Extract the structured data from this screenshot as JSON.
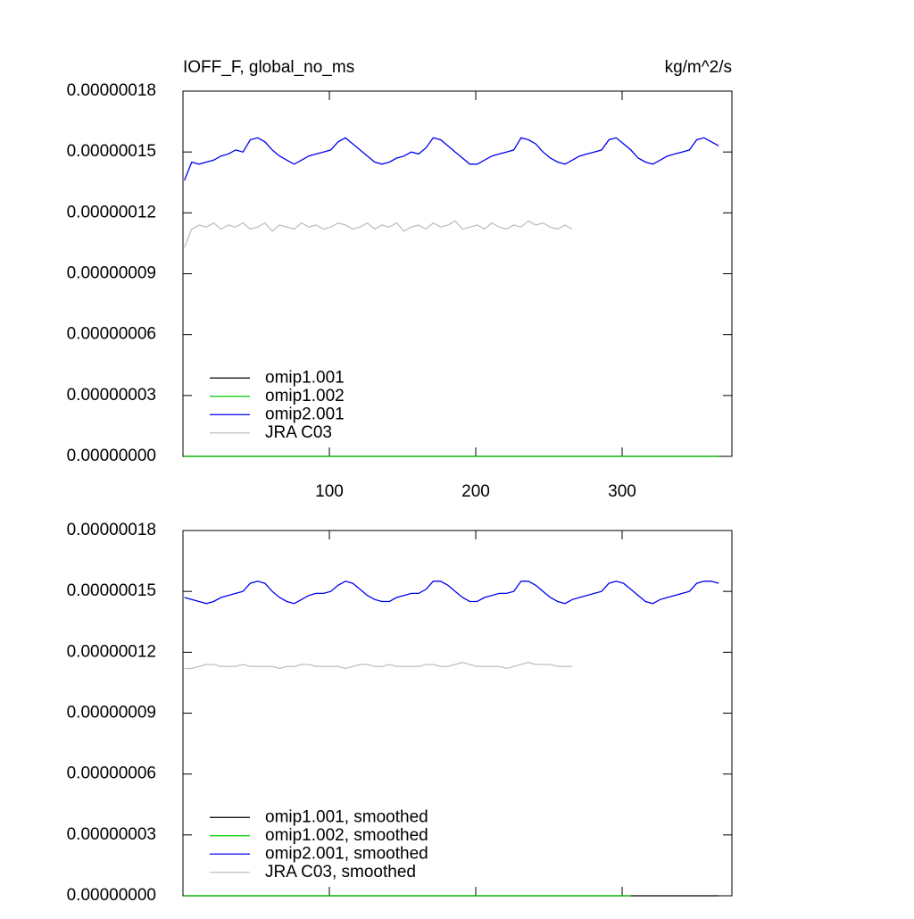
{
  "chart_data": [
    {
      "type": "line",
      "title": "IOFF_F, global_no_ms",
      "units": "kg/m^2/s",
      "x": [
        1,
        6,
        11,
        16,
        21,
        26,
        31,
        36,
        41,
        46,
        51,
        56,
        61,
        66,
        71,
        76,
        81,
        86,
        91,
        96,
        101,
        106,
        111,
        116,
        121,
        126,
        131,
        136,
        141,
        146,
        151,
        156,
        161,
        166,
        171,
        176,
        181,
        186,
        191,
        196,
        201,
        206,
        211,
        216,
        221,
        226,
        231,
        236,
        241,
        246,
        251,
        256,
        261,
        266,
        271,
        276,
        281,
        286,
        291,
        296,
        301,
        306,
        311,
        316,
        321,
        326,
        331,
        336,
        341,
        346,
        351,
        356,
        361,
        366
      ],
      "xlim": [
        0,
        375
      ],
      "xticks": [
        100,
        200,
        300
      ],
      "show_xtick_labels": true,
      "ylim": [
        0,
        1.8e-07
      ],
      "yticks": [
        {
          "value": 0,
          "label": "0.00000000"
        },
        {
          "value": 3e-08,
          "label": "0.00000003"
        },
        {
          "value": 6e-08,
          "label": "0.00000006"
        },
        {
          "value": 9e-08,
          "label": "0.00000009"
        },
        {
          "value": 1.2e-07,
          "label": "0.00000012"
        },
        {
          "value": 1.5e-07,
          "label": "0.00000015"
        },
        {
          "value": 1.8e-07,
          "label": "0.00000018"
        }
      ],
      "legend": "lower left",
      "series": [
        {
          "name": "omip1.001",
          "color": "#000000",
          "values": [
            0,
            0,
            0,
            0,
            0,
            0,
            0,
            0,
            0,
            0,
            0,
            0,
            0,
            0,
            0,
            0,
            0,
            0,
            0,
            0,
            0,
            0,
            0,
            0,
            0,
            0,
            0,
            0,
            0,
            0,
            0,
            0,
            0,
            0,
            0,
            0,
            0,
            0,
            0,
            0,
            0,
            0,
            0,
            0,
            0,
            0,
            0,
            0,
            0,
            0,
            0,
            0,
            0,
            0,
            0,
            0,
            0,
            0,
            0,
            0,
            0,
            0,
            0,
            0,
            0,
            0,
            0,
            0,
            0,
            0,
            0,
            0,
            0,
            0
          ]
        },
        {
          "name": "omip1.002",
          "color": "#00cc00",
          "values": [
            0,
            0,
            0,
            0,
            0,
            0,
            0,
            0,
            0,
            0,
            0,
            0,
            0,
            0,
            0,
            0,
            0,
            0,
            0,
            0,
            0,
            0,
            0,
            0,
            0,
            0,
            0,
            0,
            0,
            0,
            0,
            0,
            0,
            0,
            0,
            0,
            0,
            0,
            0,
            0,
            0,
            0,
            0,
            0,
            0,
            0,
            0,
            0,
            0,
            0,
            0,
            0,
            0,
            0,
            0,
            0,
            0,
            0,
            0,
            0,
            0,
            0,
            0,
            0,
            0,
            0,
            0,
            0,
            0,
            0,
            0,
            0,
            0,
            0
          ]
        },
        {
          "name": "omip2.001",
          "color": "#0000ee",
          "values": [
            1.36e-07,
            1.45e-07,
            1.44e-07,
            1.45e-07,
            1.46e-07,
            1.48e-07,
            1.49e-07,
            1.51e-07,
            1.5e-07,
            1.56e-07,
            1.57e-07,
            1.55e-07,
            1.51e-07,
            1.48e-07,
            1.46e-07,
            1.44e-07,
            1.46e-07,
            1.48e-07,
            1.49e-07,
            1.5e-07,
            1.51e-07,
            1.55e-07,
            1.57e-07,
            1.54e-07,
            1.51e-07,
            1.48e-07,
            1.45e-07,
            1.44e-07,
            1.45e-07,
            1.47e-07,
            1.48e-07,
            1.5e-07,
            1.49e-07,
            1.52e-07,
            1.57e-07,
            1.56e-07,
            1.53e-07,
            1.5e-07,
            1.47e-07,
            1.44e-07,
            1.44e-07,
            1.46e-07,
            1.48e-07,
            1.49e-07,
            1.5e-07,
            1.51e-07,
            1.57e-07,
            1.56e-07,
            1.54e-07,
            1.5e-07,
            1.47e-07,
            1.45e-07,
            1.44e-07,
            1.46e-07,
            1.48e-07,
            1.49e-07,
            1.5e-07,
            1.51e-07,
            1.56e-07,
            1.57e-07,
            1.54e-07,
            1.51e-07,
            1.47e-07,
            1.45e-07,
            1.44e-07,
            1.46e-07,
            1.48e-07,
            1.49e-07,
            1.5e-07,
            1.51e-07,
            1.56e-07,
            1.57e-07,
            1.55e-07,
            1.53e-07
          ]
        },
        {
          "name": "JRA C03",
          "color": "#c0c0c0",
          "values": [
            1.03e-07,
            1.12e-07,
            1.14e-07,
            1.13e-07,
            1.15e-07,
            1.12e-07,
            1.14e-07,
            1.13e-07,
            1.15e-07,
            1.12e-07,
            1.13e-07,
            1.15e-07,
            1.11e-07,
            1.14e-07,
            1.13e-07,
            1.12e-07,
            1.15e-07,
            1.13e-07,
            1.14e-07,
            1.12e-07,
            1.13e-07,
            1.15e-07,
            1.14e-07,
            1.12e-07,
            1.13e-07,
            1.15e-07,
            1.12e-07,
            1.14e-07,
            1.13e-07,
            1.15e-07,
            1.11e-07,
            1.13e-07,
            1.14e-07,
            1.12e-07,
            1.15e-07,
            1.13e-07,
            1.14e-07,
            1.16e-07,
            1.12e-07,
            1.13e-07,
            1.14e-07,
            1.12e-07,
            1.15e-07,
            1.13e-07,
            1.12e-07,
            1.14e-07,
            1.13e-07,
            1.16e-07,
            1.14e-07,
            1.15e-07,
            1.13e-07,
            1.12e-07,
            1.14e-07,
            1.12e-07,
            null,
            null,
            null,
            null,
            null,
            null,
            null,
            null,
            null,
            null,
            null,
            null,
            null,
            null,
            null,
            null,
            null,
            null,
            null,
            null
          ]
        }
      ]
    },
    {
      "type": "line",
      "x": [
        1,
        6,
        11,
        16,
        21,
        26,
        31,
        36,
        41,
        46,
        51,
        56,
        61,
        66,
        71,
        76,
        81,
        86,
        91,
        96,
        101,
        106,
        111,
        116,
        121,
        126,
        131,
        136,
        141,
        146,
        151,
        156,
        161,
        166,
        171,
        176,
        181,
        186,
        191,
        196,
        201,
        206,
        211,
        216,
        221,
        226,
        231,
        236,
        241,
        246,
        251,
        256,
        261,
        266,
        271,
        276,
        281,
        286,
        291,
        296,
        301,
        306,
        311,
        316,
        321,
        326,
        331,
        336,
        341,
        346,
        351,
        356,
        361,
        366
      ],
      "xlim": [
        0,
        375
      ],
      "xticks": [
        100,
        200,
        300
      ],
      "show_xtick_labels": false,
      "ylim": [
        0,
        1.8e-07
      ],
      "yticks": [
        {
          "value": 0,
          "label": "0.00000000"
        },
        {
          "value": 3e-08,
          "label": "0.00000003"
        },
        {
          "value": 6e-08,
          "label": "0.00000006"
        },
        {
          "value": 9e-08,
          "label": "0.00000009"
        },
        {
          "value": 1.2e-07,
          "label": "0.00000012"
        },
        {
          "value": 1.5e-07,
          "label": "0.00000015"
        },
        {
          "value": 1.8e-07,
          "label": "0.00000018"
        }
      ],
      "legend": "lower left",
      "series": [
        {
          "name": "omip1.001, smoothed",
          "color": "#000000",
          "values": [
            0,
            0,
            0,
            0,
            0,
            0,
            0,
            0,
            0,
            0,
            0,
            0,
            0,
            0,
            0,
            0,
            0,
            0,
            0,
            0,
            0,
            0,
            0,
            0,
            0,
            0,
            0,
            0,
            0,
            0,
            0,
            0,
            0,
            0,
            0,
            0,
            0,
            0,
            0,
            0,
            0,
            0,
            0,
            0,
            0,
            0,
            0,
            0,
            0,
            0,
            0,
            0,
            0,
            0,
            0,
            0,
            0,
            0,
            0,
            0,
            0,
            0,
            0,
            0,
            0,
            0,
            0,
            0,
            0,
            0,
            0,
            0,
            0,
            0
          ]
        },
        {
          "name": "omip1.002, smoothed",
          "color": "#00cc00",
          "values": [
            0,
            0,
            0,
            0,
            0,
            0,
            0,
            0,
            0,
            0,
            0,
            0,
            0,
            0,
            0,
            0,
            0,
            0,
            0,
            0,
            0,
            0,
            0,
            0,
            0,
            0,
            0,
            0,
            0,
            0,
            0,
            0,
            0,
            0,
            0,
            0,
            0,
            0,
            0,
            0,
            0,
            0,
            0,
            0,
            0,
            0,
            0,
            0,
            0,
            0,
            0,
            0,
            0,
            0,
            0,
            0,
            0,
            0,
            0,
            0,
            0,
            0,
            null,
            null,
            null,
            null,
            null,
            null,
            null,
            null,
            null,
            null,
            null,
            null
          ]
        },
        {
          "name": "omip2.001, smoothed",
          "color": "#0000ee",
          "values": [
            1.47e-07,
            1.46e-07,
            1.45e-07,
            1.44e-07,
            1.45e-07,
            1.47e-07,
            1.48e-07,
            1.49e-07,
            1.5e-07,
            1.54e-07,
            1.55e-07,
            1.54e-07,
            1.5e-07,
            1.47e-07,
            1.45e-07,
            1.44e-07,
            1.46e-07,
            1.48e-07,
            1.49e-07,
            1.49e-07,
            1.5e-07,
            1.53e-07,
            1.55e-07,
            1.54e-07,
            1.51e-07,
            1.48e-07,
            1.46e-07,
            1.45e-07,
            1.45e-07,
            1.47e-07,
            1.48e-07,
            1.49e-07,
            1.49e-07,
            1.51e-07,
            1.55e-07,
            1.55e-07,
            1.53e-07,
            1.5e-07,
            1.47e-07,
            1.45e-07,
            1.45e-07,
            1.47e-07,
            1.48e-07,
            1.49e-07,
            1.49e-07,
            1.5e-07,
            1.55e-07,
            1.55e-07,
            1.53e-07,
            1.5e-07,
            1.47e-07,
            1.45e-07,
            1.44e-07,
            1.46e-07,
            1.47e-07,
            1.48e-07,
            1.49e-07,
            1.5e-07,
            1.54e-07,
            1.55e-07,
            1.54e-07,
            1.51e-07,
            1.48e-07,
            1.45e-07,
            1.44e-07,
            1.46e-07,
            1.47e-07,
            1.48e-07,
            1.49e-07,
            1.5e-07,
            1.54e-07,
            1.55e-07,
            1.55e-07,
            1.54e-07
          ]
        },
        {
          "name": "JRA C03, smoothed",
          "color": "#c0c0c0",
          "values": [
            1.12e-07,
            1.12e-07,
            1.13e-07,
            1.14e-07,
            1.14e-07,
            1.13e-07,
            1.13e-07,
            1.13e-07,
            1.14e-07,
            1.13e-07,
            1.13e-07,
            1.13e-07,
            1.13e-07,
            1.12e-07,
            1.13e-07,
            1.13e-07,
            1.14e-07,
            1.14e-07,
            1.13e-07,
            1.13e-07,
            1.13e-07,
            1.13e-07,
            1.12e-07,
            1.13e-07,
            1.14e-07,
            1.14e-07,
            1.13e-07,
            1.13e-07,
            1.14e-07,
            1.13e-07,
            1.13e-07,
            1.13e-07,
            1.13e-07,
            1.14e-07,
            1.14e-07,
            1.13e-07,
            1.13e-07,
            1.14e-07,
            1.15e-07,
            1.14e-07,
            1.13e-07,
            1.13e-07,
            1.13e-07,
            1.13e-07,
            1.12e-07,
            1.13e-07,
            1.14e-07,
            1.15e-07,
            1.14e-07,
            1.14e-07,
            1.14e-07,
            1.13e-07,
            1.13e-07,
            1.13e-07,
            null,
            null,
            null,
            null,
            null,
            null,
            null,
            null,
            null,
            null,
            null,
            null,
            null,
            null,
            null,
            null,
            null,
            null,
            null,
            null
          ]
        }
      ]
    }
  ]
}
